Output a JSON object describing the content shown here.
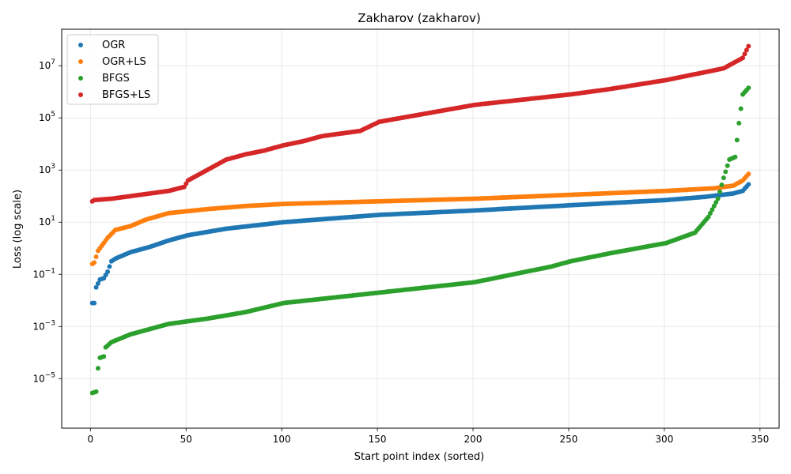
{
  "chart_data": {
    "type": "scatter",
    "title": "Zakharov (zakharov)",
    "xlabel": "Start point index (sorted)",
    "ylabel": "Loss (log scale)",
    "xlim": [
      -15,
      360
    ],
    "ylim_log10": [
      -6.9,
      8.4
    ],
    "y_scale": "log",
    "x_ticks": [
      0,
      50,
      100,
      150,
      200,
      250,
      300,
      350
    ],
    "y_ticks_exp": [
      -5,
      -3,
      -1,
      1,
      3,
      5,
      7
    ],
    "y_tick_base": "10",
    "grid": true,
    "legend_position": "top-left",
    "n_points": 344,
    "series": [
      {
        "name": "OGR",
        "color": "#1f77b4",
        "anchors_idx": [
          1,
          2,
          4,
          6,
          8,
          10,
          12,
          20,
          30,
          40,
          50,
          70,
          100,
          150,
          200,
          250,
          300,
          320,
          335,
          340,
          343
        ],
        "anchors_log10": [
          -2.1,
          -1.5,
          -1.2,
          -1.15,
          -0.9,
          -0.5,
          -0.4,
          -0.15,
          0.05,
          0.3,
          0.5,
          0.75,
          1.0,
          1.28,
          1.45,
          1.65,
          1.85,
          1.97,
          2.1,
          2.2,
          2.45
        ]
      },
      {
        "name": "OGR+LS",
        "color": "#ff7f0e",
        "anchors_idx": [
          0,
          1,
          3,
          5,
          8,
          12,
          20,
          28,
          40,
          60,
          80,
          100,
          150,
          200,
          250,
          300,
          325,
          335,
          340,
          343
        ],
        "anchors_log10": [
          -0.6,
          -0.55,
          -0.1,
          0.1,
          0.4,
          0.7,
          0.85,
          1.1,
          1.35,
          1.5,
          1.62,
          1.7,
          1.8,
          1.9,
          2.05,
          2.2,
          2.3,
          2.4,
          2.6,
          2.85
        ]
      },
      {
        "name": "BFGS",
        "color": "#2ca02c",
        "anchors_idx": [
          0,
          2,
          3,
          4,
          6,
          7,
          10,
          20,
          40,
          60,
          80,
          100,
          150,
          200,
          240,
          250,
          270,
          300,
          315,
          322,
          327,
          330,
          333,
          336,
          338,
          340,
          343
        ],
        "anchors_log10": [
          -5.55,
          -5.5,
          -4.6,
          -4.2,
          -4.15,
          -3.8,
          -3.6,
          -3.3,
          -2.9,
          -2.7,
          -2.45,
          -2.1,
          -1.7,
          -1.3,
          -0.7,
          -0.5,
          -0.2,
          0.2,
          0.6,
          1.2,
          1.9,
          2.7,
          3.4,
          3.5,
          4.8,
          5.9,
          6.15
        ]
      },
      {
        "name": "BFGS+LS",
        "color": "#d62728",
        "anchors_idx": [
          0,
          1,
          10,
          20,
          30,
          40,
          48,
          50,
          55,
          60,
          65,
          70,
          80,
          90,
          100,
          110,
          120,
          140,
          150,
          200,
          250,
          270,
          300,
          330,
          335,
          340,
          343
        ],
        "anchors_log10": [
          1.8,
          1.85,
          1.9,
          2.0,
          2.1,
          2.2,
          2.35,
          2.6,
          2.8,
          3.0,
          3.2,
          3.4,
          3.6,
          3.75,
          3.95,
          4.1,
          4.3,
          4.5,
          4.85,
          5.5,
          5.9,
          6.1,
          6.45,
          6.9,
          7.1,
          7.3,
          7.75
        ]
      }
    ]
  }
}
